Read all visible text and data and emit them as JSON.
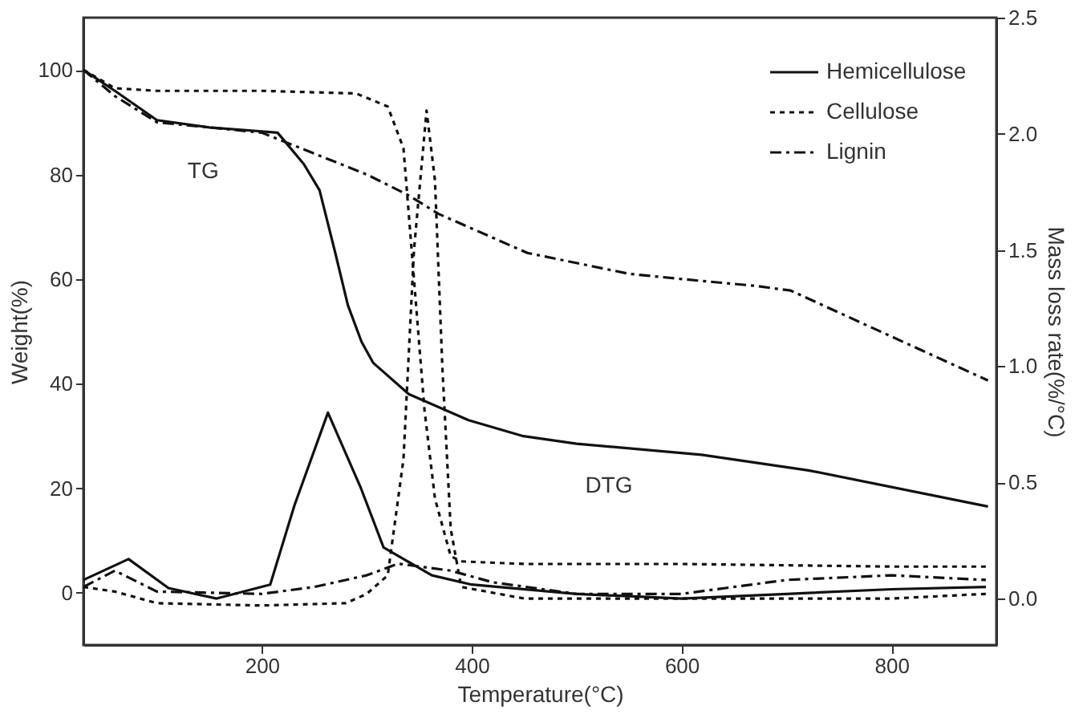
{
  "chart_data": {
    "type": "line",
    "xlabel": "Temperature(°C)",
    "ylabel": "Weight(%)",
    "y2label": "Mass loss rate(%/°C)",
    "xlim": [
      30,
      900
    ],
    "xticks": [
      200,
      400,
      600,
      800
    ],
    "ylim": [
      -10,
      110
    ],
    "yticks": [
      0,
      20,
      40,
      60,
      80,
      100
    ],
    "y2lim": [
      -0.2,
      2.5
    ],
    "y2ticks": [
      {
        "value": 0,
        "label": "0.0"
      },
      0.5,
      {
        "value": 1,
        "label": "1.0"
      },
      1.5,
      {
        "value": 2,
        "label": "2.0"
      },
      2.5
    ],
    "grid": false,
    "legend": "top right",
    "marker": "none",
    "annotations": [
      "TG",
      "DTG"
    ],
    "series": [
      {
        "name": "Hemicellulose",
        "color": "#111111",
        "line_style": "solid",
        "x": [
          30,
          60,
          100,
          150,
          190,
          215,
          240,
          255,
          270,
          282,
          295,
          306,
          340,
          397,
          448,
          500,
          619,
          721,
          892
        ],
        "values": [
          100,
          96,
          90.4,
          89,
          88.4,
          88,
          82,
          77,
          65,
          55,
          48,
          44,
          38,
          33,
          30,
          28.5,
          26.4,
          23.4,
          16.5
        ]
      },
      {
        "name": "Cellulose",
        "color": "#111111",
        "line_style": "dotted",
        "x": [
          30,
          60,
          100,
          200,
          290,
          320,
          335,
          345,
          355,
          365,
          380,
          390,
          450,
          600,
          800,
          890
        ],
        "values": [
          100,
          96.5,
          96,
          96,
          95.5,
          93,
          85,
          60,
          35,
          18,
          7,
          6,
          5.5,
          5.5,
          5,
          5
        ]
      },
      {
        "name": "Lignin",
        "color": "#111111",
        "line_style": "dashed",
        "x": [
          30,
          60,
          100,
          200,
          250,
          300,
          340,
          368,
          453,
          550,
          600,
          670,
          704,
          800,
          892
        ],
        "values": [
          100,
          95,
          90,
          88,
          84,
          80,
          76,
          72.5,
          65,
          61,
          60,
          58.7,
          57.8,
          49,
          40.6
        ]
      },
      {
        "color": "#111111",
        "line_style": "solid",
        "axis": "y2",
        "x": [
          30,
          73,
          111,
          157,
          208,
          231,
          263,
          294,
          316,
          362,
          400,
          500,
          600,
          700,
          800,
          890
        ],
        "values": [
          0.08,
          0.17,
          0.045,
          0.0,
          0.06,
          0.4,
          0.8,
          0.48,
          0.22,
          0.1,
          0.06,
          0.02,
          0.0,
          0.02,
          0.04,
          0.05
        ]
      },
      {
        "color": "#111111",
        "line_style": "dotted",
        "axis": "y2",
        "x": [
          30,
          60,
          100,
          200,
          280,
          300,
          320,
          335,
          345,
          357,
          365,
          372,
          380,
          390,
          450,
          600,
          700,
          800,
          890
        ],
        "values": [
          0.05,
          0.03,
          -0.02,
          -0.03,
          -0.02,
          0.02,
          0.1,
          0.6,
          1.5,
          2.1,
          1.8,
          1.0,
          0.3,
          0.05,
          0.0,
          0.0,
          0.0,
          0.0,
          0.02
        ]
      },
      {
        "color": "#111111",
        "line_style": "dashed",
        "axis": "y2",
        "x": [
          30,
          60,
          100,
          200,
          250,
          300,
          330,
          380,
          420,
          500,
          600,
          700,
          800,
          890
        ],
        "values": [
          0.05,
          0.12,
          0.03,
          0.02,
          0.05,
          0.1,
          0.15,
          0.12,
          0.07,
          0.02,
          0.02,
          0.08,
          0.1,
          0.08
        ]
      }
    ]
  }
}
